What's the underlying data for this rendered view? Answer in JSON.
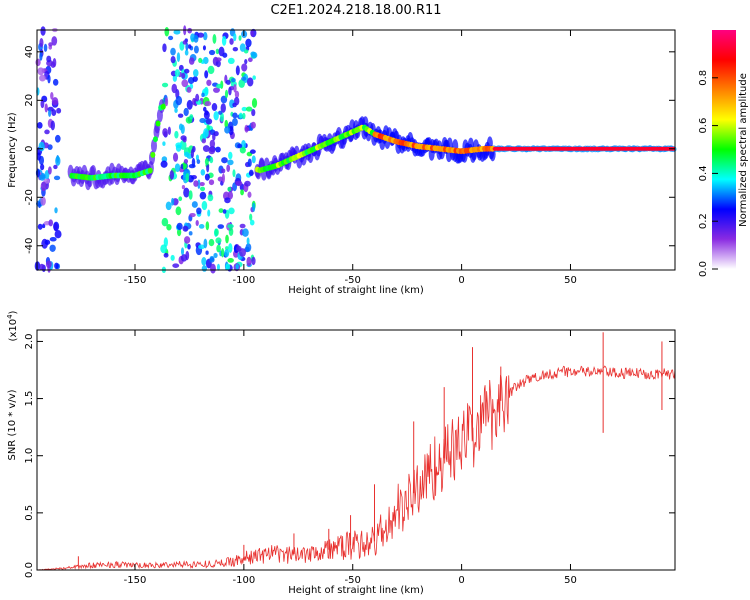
{
  "title": "C2E1.2024.218.18.00.R11",
  "chart_data": [
    {
      "type": "heatmap",
      "xlabel": "Height of straight line (km)",
      "ylabel": "Frequency (Hz)",
      "xlim": [
        -195,
        98
      ],
      "ylim": [
        -50,
        49
      ],
      "x_ticks": [
        -150,
        -100,
        -50,
        0,
        50
      ],
      "y_ticks": [
        -40,
        -20,
        0,
        20,
        40
      ],
      "grid": false,
      "colorbar": {
        "label": "Normalized spectral amplitude",
        "range": [
          0.0,
          1.0
        ],
        "ticks": [
          0.0,
          0.2,
          0.4,
          0.6,
          0.8
        ],
        "colormap": [
          "#ffffff",
          "#8a2be2",
          "#0000ff",
          "#00ffff",
          "#00ff00",
          "#ffff00",
          "#ff8000",
          "#ff0000",
          "#ff0080"
        ]
      },
      "ridge": [
        {
          "x": -180,
          "y": -11
        },
        {
          "x": -170,
          "y": -12
        },
        {
          "x": -160,
          "y": -11
        },
        {
          "x": -150,
          "y": -11
        },
        {
          "x": -143,
          "y": -9
        },
        {
          "x": -138,
          "y": 18
        },
        {
          "x": -93,
          "y": -9
        },
        {
          "x": -85,
          "y": -7
        },
        {
          "x": -75,
          "y": -3
        },
        {
          "x": -65,
          "y": 1
        },
        {
          "x": -55,
          "y": 5
        },
        {
          "x": -45,
          "y": 9
        },
        {
          "x": -40,
          "y": 6
        },
        {
          "x": -30,
          "y": 3
        },
        {
          "x": -20,
          "y": 1
        },
        {
          "x": -10,
          "y": 0
        },
        {
          "x": 0,
          "y": -1
        },
        {
          "x": 10,
          "y": 0
        },
        {
          "x": 20,
          "y": 0
        },
        {
          "x": 98,
          "y": 0
        }
      ],
      "noise_regions": [
        {
          "x_from": -195,
          "x_to": -185,
          "level": 0.25
        },
        {
          "x_from": -137,
          "x_to": -95,
          "level": 0.35
        }
      ]
    },
    {
      "type": "line",
      "xlabel": "Height of straight line (km)",
      "ylabel": "SNR (10 * v/v)",
      "y_multiplier": "(x10",
      "y_multiplier_exp": "4",
      "y_multiplier_close": ")",
      "xlim": [
        -195,
        98
      ],
      "ylim": [
        0,
        2.1
      ],
      "x_ticks": [
        -150,
        -100,
        -50,
        0,
        50
      ],
      "y_ticks": [
        "0.0",
        "0.5",
        "1.0",
        "1.5",
        "2.0"
      ],
      "grid": false,
      "color": "#e8312f",
      "x": [
        -195,
        -180,
        -170,
        -160,
        -150,
        -140,
        -130,
        -120,
        -110,
        -100,
        -90,
        -80,
        -70,
        -60,
        -50,
        -40,
        -35,
        -30,
        -25,
        -20,
        -15,
        -10,
        -5,
        0,
        5,
        10,
        15,
        20,
        25,
        30,
        40,
        50,
        60,
        65,
        70,
        80,
        90,
        98
      ],
      "values": [
        0.0,
        0.02,
        0.04,
        0.05,
        0.04,
        0.04,
        0.05,
        0.05,
        0.06,
        0.1,
        0.14,
        0.13,
        0.16,
        0.18,
        0.22,
        0.25,
        0.35,
        0.5,
        0.6,
        0.72,
        0.85,
        0.95,
        1.02,
        1.12,
        1.2,
        1.3,
        1.42,
        1.52,
        1.6,
        1.66,
        1.72,
        1.74,
        1.73,
        1.74,
        1.72,
        1.72,
        1.72,
        1.71
      ],
      "spikes": [
        {
          "x": -176,
          "y": 0.12
        },
        {
          "x": -100,
          "y": 0.22
        },
        {
          "x": -77,
          "y": 0.32
        },
        {
          "x": -61,
          "y": 0.36
        },
        {
          "x": -51,
          "y": 0.48
        },
        {
          "x": -40,
          "y": 0.75
        },
        {
          "x": -22,
          "y": 1.3
        },
        {
          "x": -8,
          "y": 1.6
        },
        {
          "x": 5,
          "y": 1.95
        },
        {
          "x": 18,
          "y": 1.78
        },
        {
          "x": 65,
          "y": 2.08
        },
        {
          "x": 65,
          "y": 1.2
        },
        {
          "x": 92,
          "y": 2.0
        },
        {
          "x": 92,
          "y": 1.4
        }
      ]
    }
  ]
}
